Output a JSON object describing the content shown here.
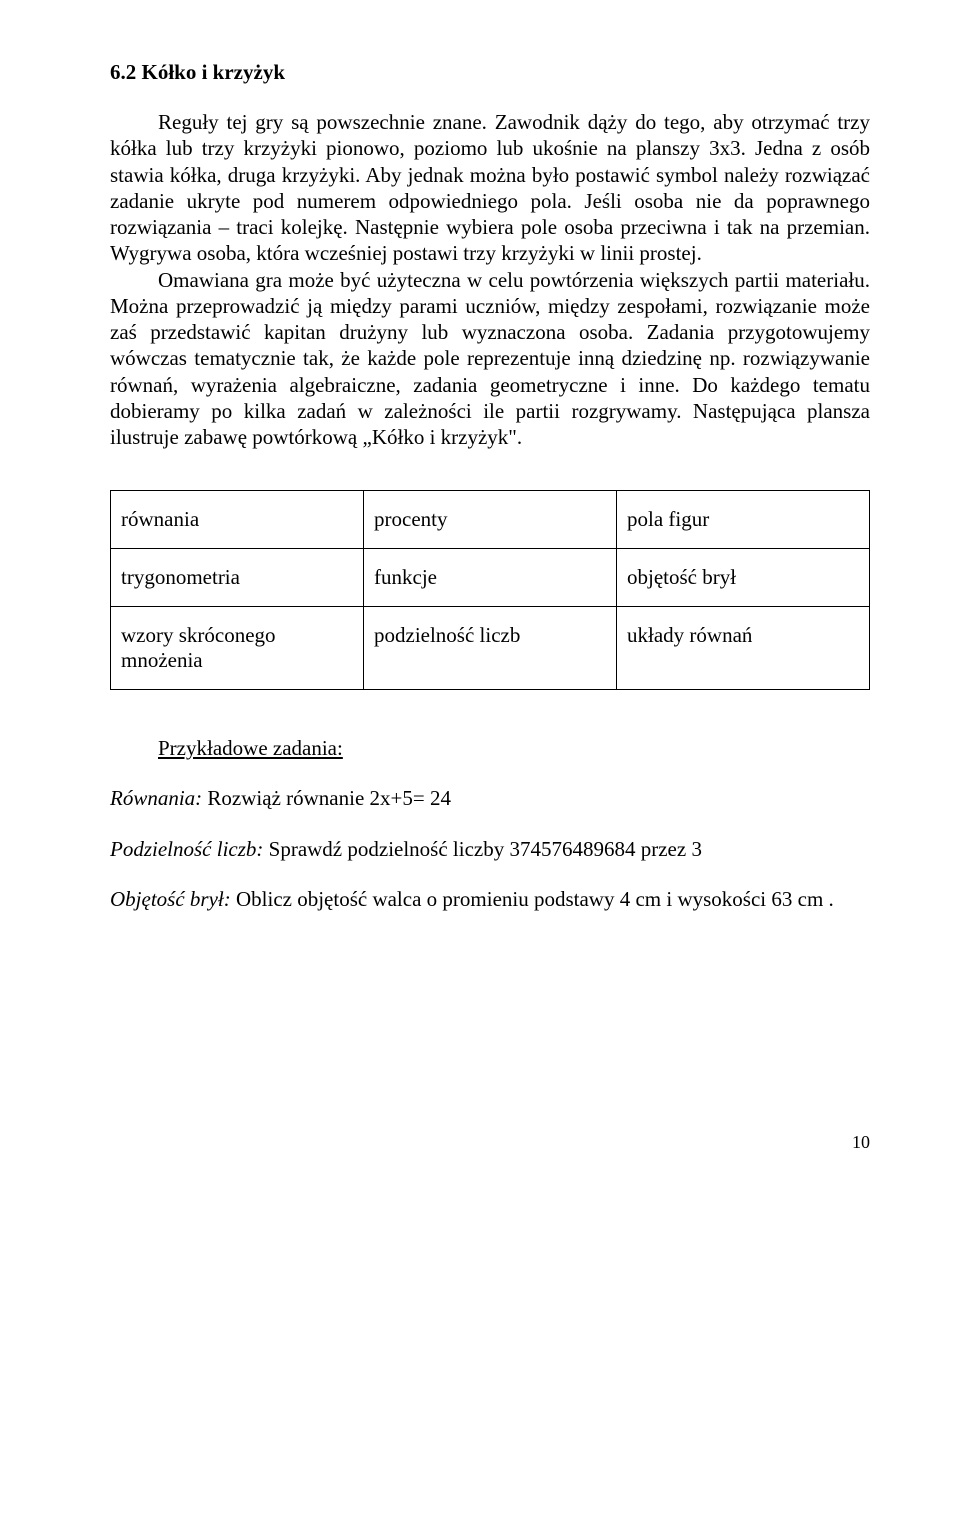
{
  "heading": "6.2 Kółko  i  krzyżyk",
  "paragraph1": "Reguły  tej  gry  są  powszechnie  znane.  Zawodnik  dąży  do  tego, aby  otrzymać  trzy  kółka  lub   trzy  krzyżyki  pionowo, poziomo  lub  ukośnie  na  planszy  3x3.  Jedna  z osób  stawia  kółka, druga  krzyżyki.  Aby  jednak  można  było  postawić  symbol    należy  rozwiązać  zadanie  ukryte  pod  numerem  odpowiedniego  pola.  Jeśli  osoba  nie  da  poprawnego  rozwiązania – traci  kolejkę.  Następnie  wybiera  pole  osoba przeciwna  i  tak  na  przemian. Wygrywa  osoba,  która  wcześniej postawi  trzy  krzyżyki  w  linii   prostej.",
  "paragraph2": "Omawiana  gra  może  być  użyteczna w  celu  powtórzenia    większych   partii  materiału. Można  przeprowadzić  ją  między  parami uczniów,  między  zespołami,  rozwiązanie  może  zaś  przedstawić  kapitan  drużyny lub  wyznaczona  osoba.  Zadania  przygotowujemy  wówczas  tematycznie tak,  że  każde  pole  reprezentuje  inną  dziedzinę np.  rozwiązywanie  równań,  wyrażenia  algebraiczne, zadania  geometryczne   i  inne. Do  każdego  tematu   dobieramy  po  kilka  zadań   w  zależności  ile  partii  rozgrywamy. Następująca  plansza  ilustruje  zabawę  powtórkową   „Kółko  i  krzyżyk\".",
  "table": {
    "rows": [
      [
        "równania",
        "procenty",
        "pola   figur"
      ],
      [
        "trygonometria",
        "funkcje",
        "objętość brył"
      ],
      [
        "wzory  skróconego  mnożenia",
        "podzielność liczb",
        "układy równań"
      ]
    ]
  },
  "examples_heading": "Przykładowe zadania:",
  "example1_label": "Równania:",
  "example1_text": "  Rozwiąż  równanie     2x+5=  24",
  "example2_label": "Podzielność liczb:",
  "example2_text": "  Sprawdź podzielność  liczby  374576489684  przez  3",
  "example3_label": "Objętość brył:",
  "example3_text": "   Oblicz  objętość  walca  o promieniu  podstawy  4 cm  i wysokości  63 cm .",
  "page_number": "10"
}
